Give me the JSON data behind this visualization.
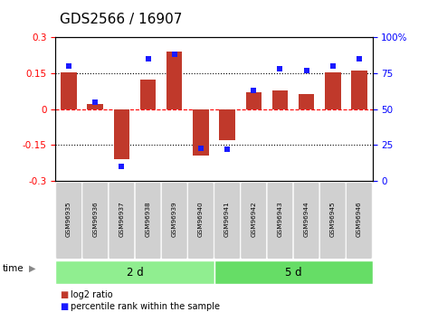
{
  "title": "GDS2566 / 16907",
  "samples": [
    "GSM96935",
    "GSM96936",
    "GSM96937",
    "GSM96938",
    "GSM96939",
    "GSM96940",
    "GSM96941",
    "GSM96942",
    "GSM96943",
    "GSM96944",
    "GSM96945",
    "GSM96946"
  ],
  "log2_ratio": [
    0.155,
    0.02,
    -0.21,
    0.125,
    0.24,
    -0.195,
    -0.13,
    0.07,
    0.08,
    0.065,
    0.155,
    0.16
  ],
  "percentile_rank": [
    80,
    55,
    10,
    85,
    88,
    23,
    22,
    63,
    78,
    77,
    80,
    85
  ],
  "groups": [
    {
      "label": "2 d",
      "start": 0,
      "end": 6,
      "color": "#90EE90"
    },
    {
      "label": "5 d",
      "start": 6,
      "end": 12,
      "color": "#66DD66"
    }
  ],
  "bar_color": "#C0392B",
  "dot_color": "#1a1aff",
  "ylim_left": [
    -0.3,
    0.3
  ],
  "ylim_right": [
    0,
    100
  ],
  "yticks_left": [
    -0.3,
    -0.15,
    0.0,
    0.15,
    0.3
  ],
  "yticks_right": [
    0,
    25,
    50,
    75,
    100
  ],
  "hlines": [
    -0.15,
    0.0,
    0.15
  ],
  "hlines_styles": [
    "dotted",
    "dashed",
    "dotted"
  ],
  "bg_color": "#ffffff",
  "plot_bg_color": "#ffffff",
  "time_label": "time",
  "legend_log2": "log2 ratio",
  "legend_pct": "percentile rank within the sample",
  "title_fontsize": 11,
  "tick_fontsize": 7.5
}
